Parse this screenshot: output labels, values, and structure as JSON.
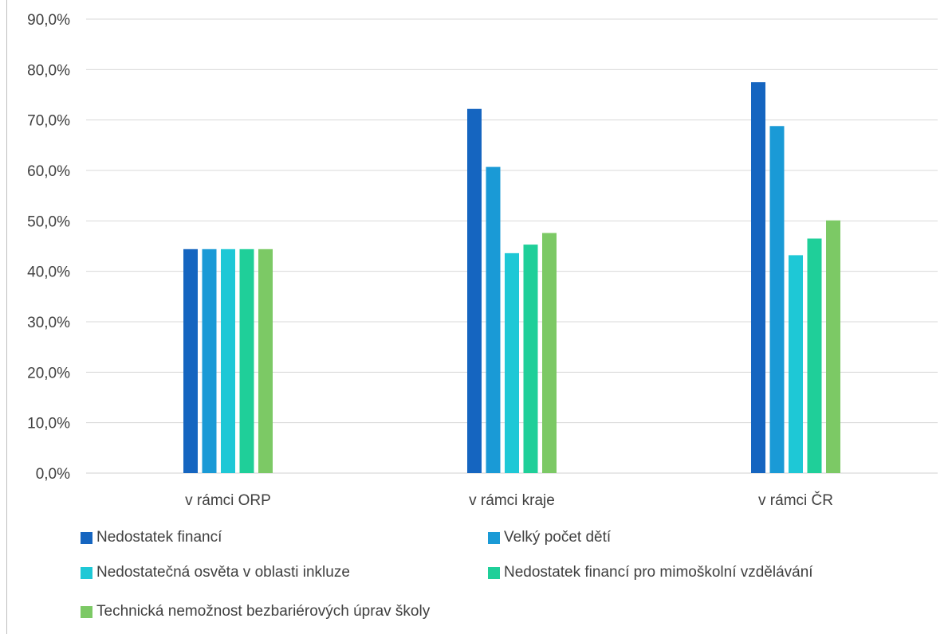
{
  "chart_data": {
    "type": "bar",
    "title": "",
    "xlabel": "",
    "ylabel": "",
    "ylim": [
      0,
      90
    ],
    "yticks": [
      "0,0%",
      "10,0%",
      "20,0%",
      "30,0%",
      "40,0%",
      "50,0%",
      "60,0%",
      "70,0%",
      "80,0%",
      "90,0%"
    ],
    "categories": [
      "v rámci ORP",
      "v rámci kraje",
      "v rámci ČR"
    ],
    "series": [
      {
        "name": "Nedostatek financí",
        "color": "#1565c0",
        "values": [
          44.4,
          72.2,
          77.5
        ]
      },
      {
        "name": "Velký počet dětí",
        "color": "#1a9ad6",
        "values": [
          44.4,
          60.7,
          68.8
        ]
      },
      {
        "name": "Nedostatečná osvěta v oblasti inkluze",
        "color": "#1ec8d6",
        "values": [
          44.4,
          43.6,
          43.2
        ]
      },
      {
        "name": "Nedostatek financí pro mimoškolní vzdělávání",
        "color": "#1fcf99",
        "values": [
          44.4,
          45.3,
          46.5
        ]
      },
      {
        "name": "Technická nemožnost bezbariérových úprav školy",
        "color": "#7cc965",
        "values": [
          44.4,
          47.6,
          50.1
        ]
      }
    ],
    "grid": true,
    "legend_position": "bottom"
  }
}
